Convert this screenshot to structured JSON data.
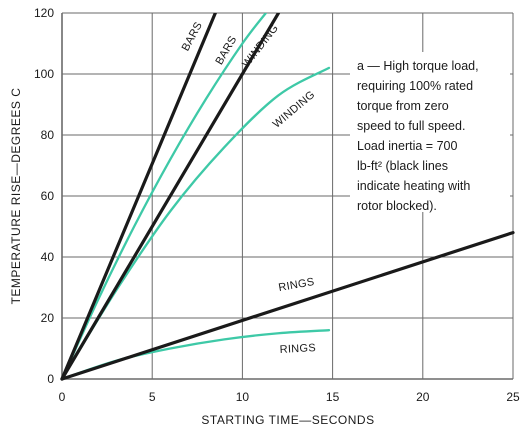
{
  "chart_data": {
    "type": "line",
    "xlabel": "STARTING TIME—SECONDS",
    "ylabel": "TEMPERATURE RISE—DEGREES C",
    "xlim": [
      0,
      25
    ],
    "ylim": [
      0,
      120
    ],
    "x_ticks": [
      0,
      5,
      10,
      15,
      20,
      25
    ],
    "y_ticks": [
      0,
      20,
      40,
      60,
      80,
      100,
      120
    ],
    "grid": true,
    "colors": {
      "black": "#1a1a1a",
      "green": "#3ec9a7",
      "grid": "#6a6a6a"
    },
    "series": [
      {
        "name": "BARS",
        "color": "black",
        "x": [
          0,
          8.5
        ],
        "y": [
          0,
          120
        ]
      },
      {
        "name": "BARS",
        "color": "green",
        "x": [
          0,
          2,
          4,
          6,
          8,
          10,
          11.3
        ],
        "y": [
          0,
          26,
          50,
          72,
          92,
          110,
          120
        ]
      },
      {
        "name": "WINDING",
        "color": "black",
        "x": [
          0,
          12
        ],
        "y": [
          0,
          120
        ]
      },
      {
        "name": "WINDING",
        "color": "green",
        "x": [
          0,
          3,
          6,
          9,
          12,
          14.8
        ],
        "y": [
          0,
          29,
          55,
          76,
          93,
          102
        ]
      },
      {
        "name": "RINGS",
        "color": "black",
        "x": [
          0,
          25
        ],
        "y": [
          0,
          48
        ]
      },
      {
        "name": "RINGS",
        "color": "green",
        "x": [
          0,
          3,
          6,
          9,
          12,
          14.8
        ],
        "y": [
          0,
          6,
          10,
          13,
          15,
          16
        ]
      }
    ],
    "annotation": {
      "lines": [
        "a — High torque load,",
        "requiring 100% rated",
        "torque from zero",
        "speed to full speed.",
        "Load inertia = 700",
        "lb-ft² (black lines",
        "indicate heating with",
        "rotor blocked)."
      ]
    }
  }
}
